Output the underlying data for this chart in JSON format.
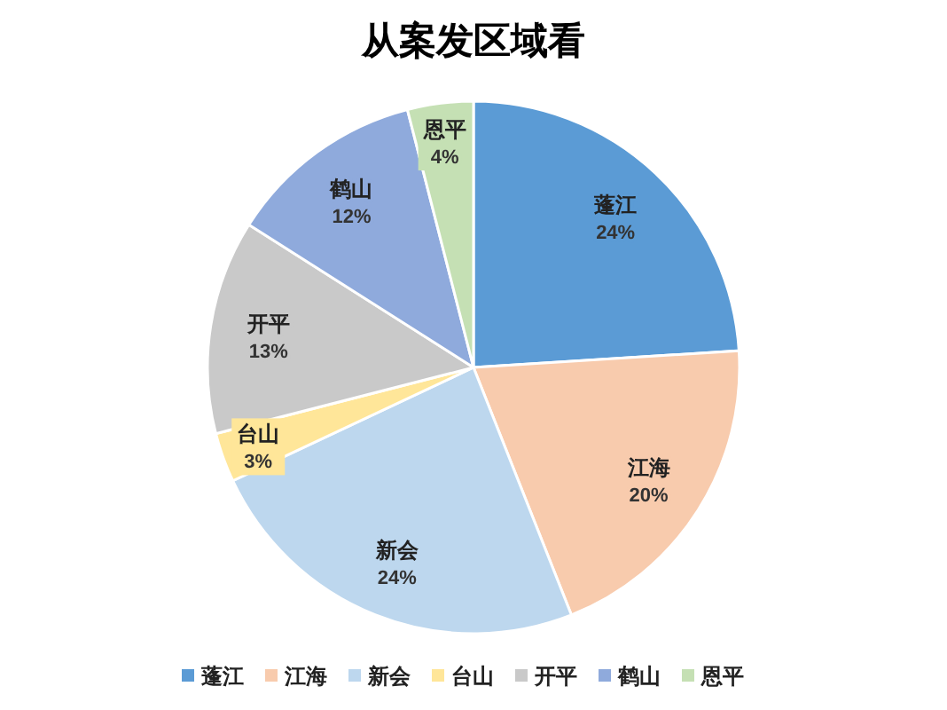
{
  "chart_data": {
    "type": "pie",
    "title": "从案发区域看",
    "categories": [
      "蓬江",
      "江海",
      "新会",
      "台山",
      "开平",
      "鹤山",
      "恩平"
    ],
    "values": [
      24,
      20,
      24,
      3,
      13,
      12,
      4
    ],
    "colors": [
      "#5b9bd5",
      "#f8cbad",
      "#bdd7ee",
      "#ffe699",
      "#c9c9c9",
      "#8faadc",
      "#c5e0b4"
    ],
    "value_labels": [
      "24%",
      "20%",
      "24%",
      "3%",
      "13%",
      "12%",
      "4%"
    ],
    "legend": "bottom"
  }
}
